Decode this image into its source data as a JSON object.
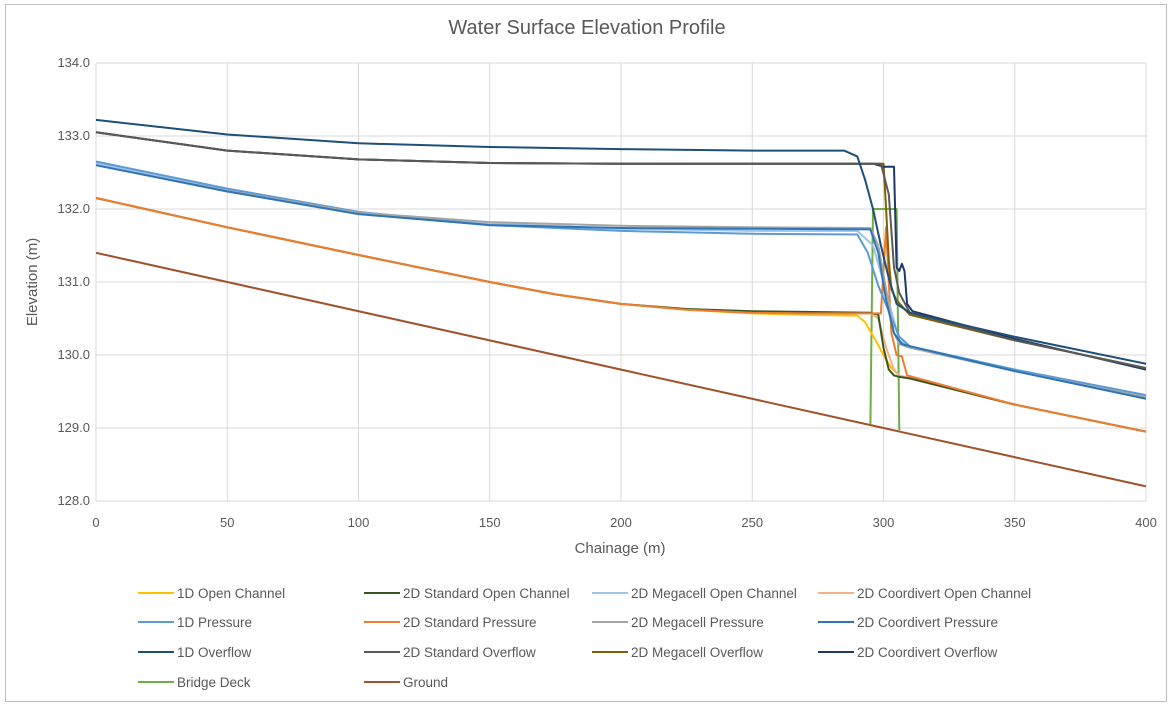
{
  "chart_data": {
    "type": "line",
    "title": "Water Surface Elevation Profile",
    "xlabel": "Chainage (m)",
    "ylabel": "Elevation (m)",
    "xlim": [
      0,
      400
    ],
    "ylim": [
      128.0,
      134.0
    ],
    "x_ticks": [
      "0",
      "50",
      "100",
      "150",
      "200",
      "250",
      "300",
      "350",
      "400"
    ],
    "y_ticks": [
      "128.0",
      "129.0",
      "130.0",
      "131.0",
      "132.0",
      "133.0",
      "134.0"
    ],
    "grid": true,
    "legend_position": "bottom",
    "series": [
      {
        "name": "1D Open Channel",
        "color": "#FFC000",
        "points": [
          [
            0,
            132.15
          ],
          [
            50,
            131.75
          ],
          [
            100,
            131.37
          ],
          [
            150,
            131.0
          ],
          [
            175,
            130.83
          ],
          [
            200,
            130.7
          ],
          [
            225,
            130.62
          ],
          [
            250,
            130.57
          ],
          [
            270,
            130.55
          ],
          [
            290,
            130.54
          ],
          [
            293,
            130.45
          ],
          [
            297,
            130.2
          ],
          [
            300,
            130.0
          ],
          [
            303,
            129.82
          ],
          [
            306,
            129.72
          ],
          [
            310,
            129.68
          ],
          [
            350,
            129.32
          ],
          [
            400,
            128.95
          ]
        ]
      },
      {
        "name": "2D Standard Open Channel",
        "color": "#375623",
        "points": [
          [
            0,
            132.15
          ],
          [
            50,
            131.75
          ],
          [
            100,
            131.37
          ],
          [
            150,
            131.0
          ],
          [
            175,
            130.83
          ],
          [
            200,
            130.7
          ],
          [
            225,
            130.63
          ],
          [
            250,
            130.6
          ],
          [
            270,
            130.59
          ],
          [
            295,
            130.58
          ],
          [
            298,
            130.55
          ],
          [
            300,
            130.1
          ],
          [
            302,
            129.8
          ],
          [
            304,
            129.72
          ],
          [
            306,
            129.7
          ],
          [
            310,
            129.68
          ],
          [
            350,
            129.32
          ],
          [
            400,
            128.95
          ]
        ]
      },
      {
        "name": "2D Megacell Open Channel",
        "color": "#9DC3E6",
        "points": [
          [
            0,
            132.63
          ],
          [
            50,
            132.27
          ],
          [
            100,
            131.95
          ],
          [
            150,
            131.8
          ],
          [
            200,
            131.73
          ],
          [
            250,
            131.7
          ],
          [
            290,
            131.7
          ],
          [
            296,
            131.5
          ],
          [
            300,
            131.0
          ],
          [
            303,
            130.6
          ],
          [
            306,
            130.2
          ],
          [
            310,
            130.1
          ],
          [
            350,
            129.8
          ],
          [
            400,
            129.45
          ]
        ]
      },
      {
        "name": "2D Coordivert Open Channel",
        "color": "#F4B183",
        "points": [
          [
            0,
            132.15
          ],
          [
            50,
            131.75
          ],
          [
            100,
            131.37
          ],
          [
            150,
            131.0
          ],
          [
            175,
            130.83
          ],
          [
            200,
            130.7
          ],
          [
            225,
            130.62
          ],
          [
            250,
            130.58
          ],
          [
            270,
            130.57
          ],
          [
            295,
            130.57
          ],
          [
            298,
            130.5
          ],
          [
            301,
            130.1
          ],
          [
            304,
            129.8
          ],
          [
            306,
            129.72
          ],
          [
            310,
            129.68
          ],
          [
            350,
            129.32
          ],
          [
            400,
            128.95
          ]
        ]
      },
      {
        "name": "1D Pressure",
        "color": "#5B9BD5",
        "points": [
          [
            0,
            132.65
          ],
          [
            50,
            132.28
          ],
          [
            100,
            131.96
          ],
          [
            150,
            131.78
          ],
          [
            200,
            131.7
          ],
          [
            250,
            131.66
          ],
          [
            290,
            131.65
          ],
          [
            294,
            131.4
          ],
          [
            298,
            130.95
          ],
          [
            302,
            130.6
          ],
          [
            306,
            130.25
          ],
          [
            310,
            130.12
          ],
          [
            350,
            129.8
          ],
          [
            400,
            129.45
          ]
        ]
      },
      {
        "name": "2D Standard Pressure",
        "color": "#ED7D31",
        "points": [
          [
            0,
            132.15
          ],
          [
            50,
            131.75
          ],
          [
            100,
            131.37
          ],
          [
            150,
            131.0
          ],
          [
            175,
            130.83
          ],
          [
            200,
            130.7
          ],
          [
            225,
            130.62
          ],
          [
            250,
            130.58
          ],
          [
            270,
            130.57
          ],
          [
            294,
            130.57
          ],
          [
            299,
            130.57
          ],
          [
            301,
            131.75
          ],
          [
            302,
            131.0
          ],
          [
            303,
            130.3
          ],
          [
            305,
            130.0
          ],
          [
            307,
            129.98
          ],
          [
            309,
            129.72
          ],
          [
            350,
            129.32
          ],
          [
            400,
            128.95
          ]
        ]
      },
      {
        "name": "2D Megacell Pressure",
        "color": "#A5A5A5",
        "points": [
          [
            0,
            132.6
          ],
          [
            50,
            132.25
          ],
          [
            100,
            131.95
          ],
          [
            150,
            131.82
          ],
          [
            200,
            131.77
          ],
          [
            250,
            131.75
          ],
          [
            295,
            131.74
          ],
          [
            298,
            131.5
          ],
          [
            301,
            130.9
          ],
          [
            304,
            130.3
          ],
          [
            306,
            130.15
          ],
          [
            310,
            130.1
          ],
          [
            350,
            129.78
          ],
          [
            400,
            129.42
          ]
        ]
      },
      {
        "name": "2D Coordivert Pressure",
        "color": "#2E75B6",
        "points": [
          [
            0,
            132.6
          ],
          [
            50,
            132.24
          ],
          [
            100,
            131.93
          ],
          [
            150,
            131.78
          ],
          [
            200,
            131.74
          ],
          [
            250,
            131.73
          ],
          [
            295,
            131.72
          ],
          [
            298,
            131.4
          ],
          [
            301,
            130.75
          ],
          [
            304,
            130.3
          ],
          [
            307,
            130.15
          ],
          [
            310,
            130.12
          ],
          [
            350,
            129.78
          ],
          [
            400,
            129.4
          ]
        ]
      },
      {
        "name": "1D Overflow",
        "color": "#1F4E79",
        "points": [
          [
            0,
            133.22
          ],
          [
            50,
            133.02
          ],
          [
            100,
            132.9
          ],
          [
            150,
            132.85
          ],
          [
            200,
            132.82
          ],
          [
            250,
            132.8
          ],
          [
            285,
            132.8
          ],
          [
            290,
            132.72
          ],
          [
            293,
            132.4
          ],
          [
            296,
            132.0
          ],
          [
            299,
            131.5
          ],
          [
            302,
            131.05
          ],
          [
            305,
            130.7
          ],
          [
            310,
            130.58
          ],
          [
            350,
            130.25
          ],
          [
            400,
            129.88
          ]
        ]
      },
      {
        "name": "2D Standard Overflow",
        "color": "#595959",
        "points": [
          [
            0,
            133.05
          ],
          [
            50,
            132.8
          ],
          [
            100,
            132.68
          ],
          [
            150,
            132.63
          ],
          [
            200,
            132.62
          ],
          [
            250,
            132.62
          ],
          [
            296,
            132.62
          ],
          [
            299,
            132.62
          ],
          [
            302,
            132.2
          ],
          [
            304,
            131.2
          ],
          [
            306,
            130.85
          ],
          [
            310,
            130.58
          ],
          [
            350,
            130.2
          ],
          [
            400,
            129.82
          ]
        ]
      },
      {
        "name": "2D Megacell Overflow",
        "color": "#806000",
        "points": [
          [
            0,
            133.05
          ],
          [
            50,
            132.8
          ],
          [
            100,
            132.68
          ],
          [
            150,
            132.63
          ],
          [
            200,
            132.62
          ],
          [
            250,
            132.62
          ],
          [
            296,
            132.62
          ],
          [
            300,
            132.62
          ],
          [
            301,
            132.0
          ],
          [
            302,
            131.3
          ],
          [
            303,
            130.9
          ],
          [
            305,
            130.75
          ],
          [
            310,
            130.55
          ],
          [
            350,
            130.2
          ],
          [
            400,
            129.82
          ]
        ]
      },
      {
        "name": "2D Coordivert Overflow",
        "color": "#203864",
        "points": [
          [
            0,
            133.05
          ],
          [
            50,
            132.8
          ],
          [
            100,
            132.68
          ],
          [
            150,
            132.63
          ],
          [
            200,
            132.62
          ],
          [
            250,
            132.62
          ],
          [
            296,
            132.62
          ],
          [
            300,
            132.58
          ],
          [
            304,
            132.58
          ],
          [
            305,
            131.2
          ],
          [
            306,
            131.15
          ],
          [
            307,
            131.25
          ],
          [
            308,
            131.15
          ],
          [
            309,
            130.7
          ],
          [
            311,
            130.6
          ],
          [
            350,
            130.22
          ],
          [
            400,
            129.8
          ]
        ]
      },
      {
        "name": "Bridge Deck",
        "color": "#70AD47",
        "points": [
          [
            295,
            129.05
          ],
          [
            296,
            132.0
          ],
          [
            305,
            132.0
          ],
          [
            306,
            128.97
          ]
        ]
      },
      {
        "name": "Ground",
        "color": "#A0522D",
        "points": [
          [
            0,
            131.4
          ],
          [
            400,
            128.2
          ]
        ]
      }
    ]
  }
}
